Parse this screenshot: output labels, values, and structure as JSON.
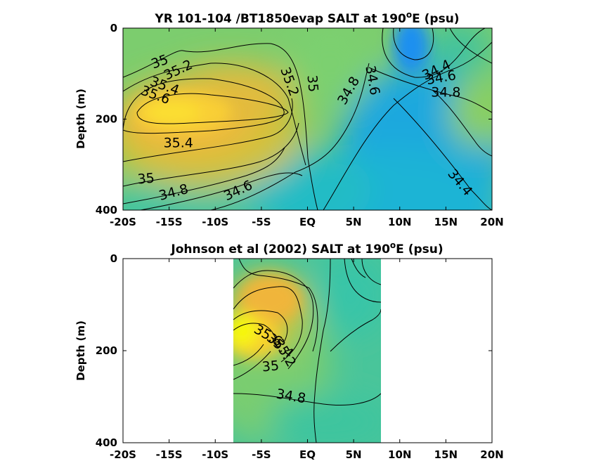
{
  "chart_data": [
    {
      "type": "heatmap",
      "subtype": "filled-contour",
      "title_main": "YR 101-104 /BT1850evap SALT at 190",
      "title_sup": "o",
      "title_tail": "E (psu)",
      "ylabel": "Depth (m)",
      "xlim": [
        -20,
        20
      ],
      "ylim": [
        400,
        0
      ],
      "x_ticks": [
        -20,
        -15,
        -10,
        -5,
        0,
        5,
        10,
        15,
        20
      ],
      "x_tick_labels": [
        "-20S",
        "-15S",
        "-10S",
        "-5S",
        "EQ",
        "5N",
        "10N",
        "15N",
        "20N"
      ],
      "y_ticks": [
        0,
        200,
        400
      ],
      "y_tick_labels": [
        "0",
        "200",
        "400"
      ],
      "colormap": [
        "#1f9be8",
        "#17bcd0",
        "#26c3a5",
        "#7cce6d",
        "#c2c536",
        "#f2b63a",
        "#fcd832",
        "#f8fa0e"
      ],
      "contour_labels": [
        {
          "text": "35",
          "x": -16.0,
          "y": 75,
          "angle": -20
        },
        {
          "text": "35.2",
          "x": -14.0,
          "y": 93,
          "angle": -25
        },
        {
          "text": "35.4",
          "x": -15.5,
          "y": 128,
          "angle": 20
        },
        {
          "text": "35.6",
          "x": -16.5,
          "y": 148,
          "angle": 20
        },
        {
          "text": "35.2",
          "x": -2.0,
          "y": 118,
          "angle": 70
        },
        {
          "text": "35",
          "x": 0.5,
          "y": 122,
          "angle": 85
        },
        {
          "text": "34.8",
          "x": 4.5,
          "y": 138,
          "angle": -60
        },
        {
          "text": "34.6",
          "x": 7.0,
          "y": 115,
          "angle": 80
        },
        {
          "text": "34.4",
          "x": 14.0,
          "y": 93,
          "angle": -25
        },
        {
          "text": "34.6",
          "x": 14.5,
          "y": 110,
          "angle": -10
        },
        {
          "text": "34.8",
          "x": 15.0,
          "y": 142,
          "angle": 0
        },
        {
          "text": "35.4",
          "x": -14.0,
          "y": 253,
          "angle": 0
        },
        {
          "text": "35",
          "x": -17.5,
          "y": 332,
          "angle": -5
        },
        {
          "text": "34.8",
          "x": -14.5,
          "y": 362,
          "angle": -15
        },
        {
          "text": "34.6",
          "x": -7.5,
          "y": 358,
          "angle": -25
        },
        {
          "text": "34.4",
          "x": 16.5,
          "y": 340,
          "angle": 50
        }
      ]
    },
    {
      "type": "heatmap",
      "subtype": "filled-contour",
      "title_main": "Johnson et al (2002) SALT at 190",
      "title_sup": "o",
      "title_tail": "E (psu)",
      "ylabel": "Depth (m)",
      "xlim": [
        -20,
        20
      ],
      "ylim": [
        400,
        0
      ],
      "data_xrange": [
        -8,
        8
      ],
      "x_ticks": [
        -20,
        -15,
        -10,
        -5,
        0,
        5,
        10,
        15,
        20
      ],
      "x_tick_labels": [
        "-20S",
        "-15S",
        "-10S",
        "-5S",
        "EQ",
        "5N",
        "10N",
        "15N",
        "20N"
      ],
      "y_ticks": [
        0,
        200,
        400
      ],
      "y_tick_labels": [
        "0",
        "200",
        "400"
      ],
      "contour_labels": [
        {
          "text": "35.6",
          "x": -4.3,
          "y": 168,
          "angle": 30
        },
        {
          "text": "35.4",
          "x": -3.0,
          "y": 190,
          "angle": 40
        },
        {
          "text": "35.2",
          "x": -2.5,
          "y": 205,
          "angle": 60
        },
        {
          "text": "35",
          "x": -4.0,
          "y": 235,
          "angle": -5
        },
        {
          "text": "34.8",
          "x": -1.8,
          "y": 300,
          "angle": 10
        }
      ]
    }
  ]
}
